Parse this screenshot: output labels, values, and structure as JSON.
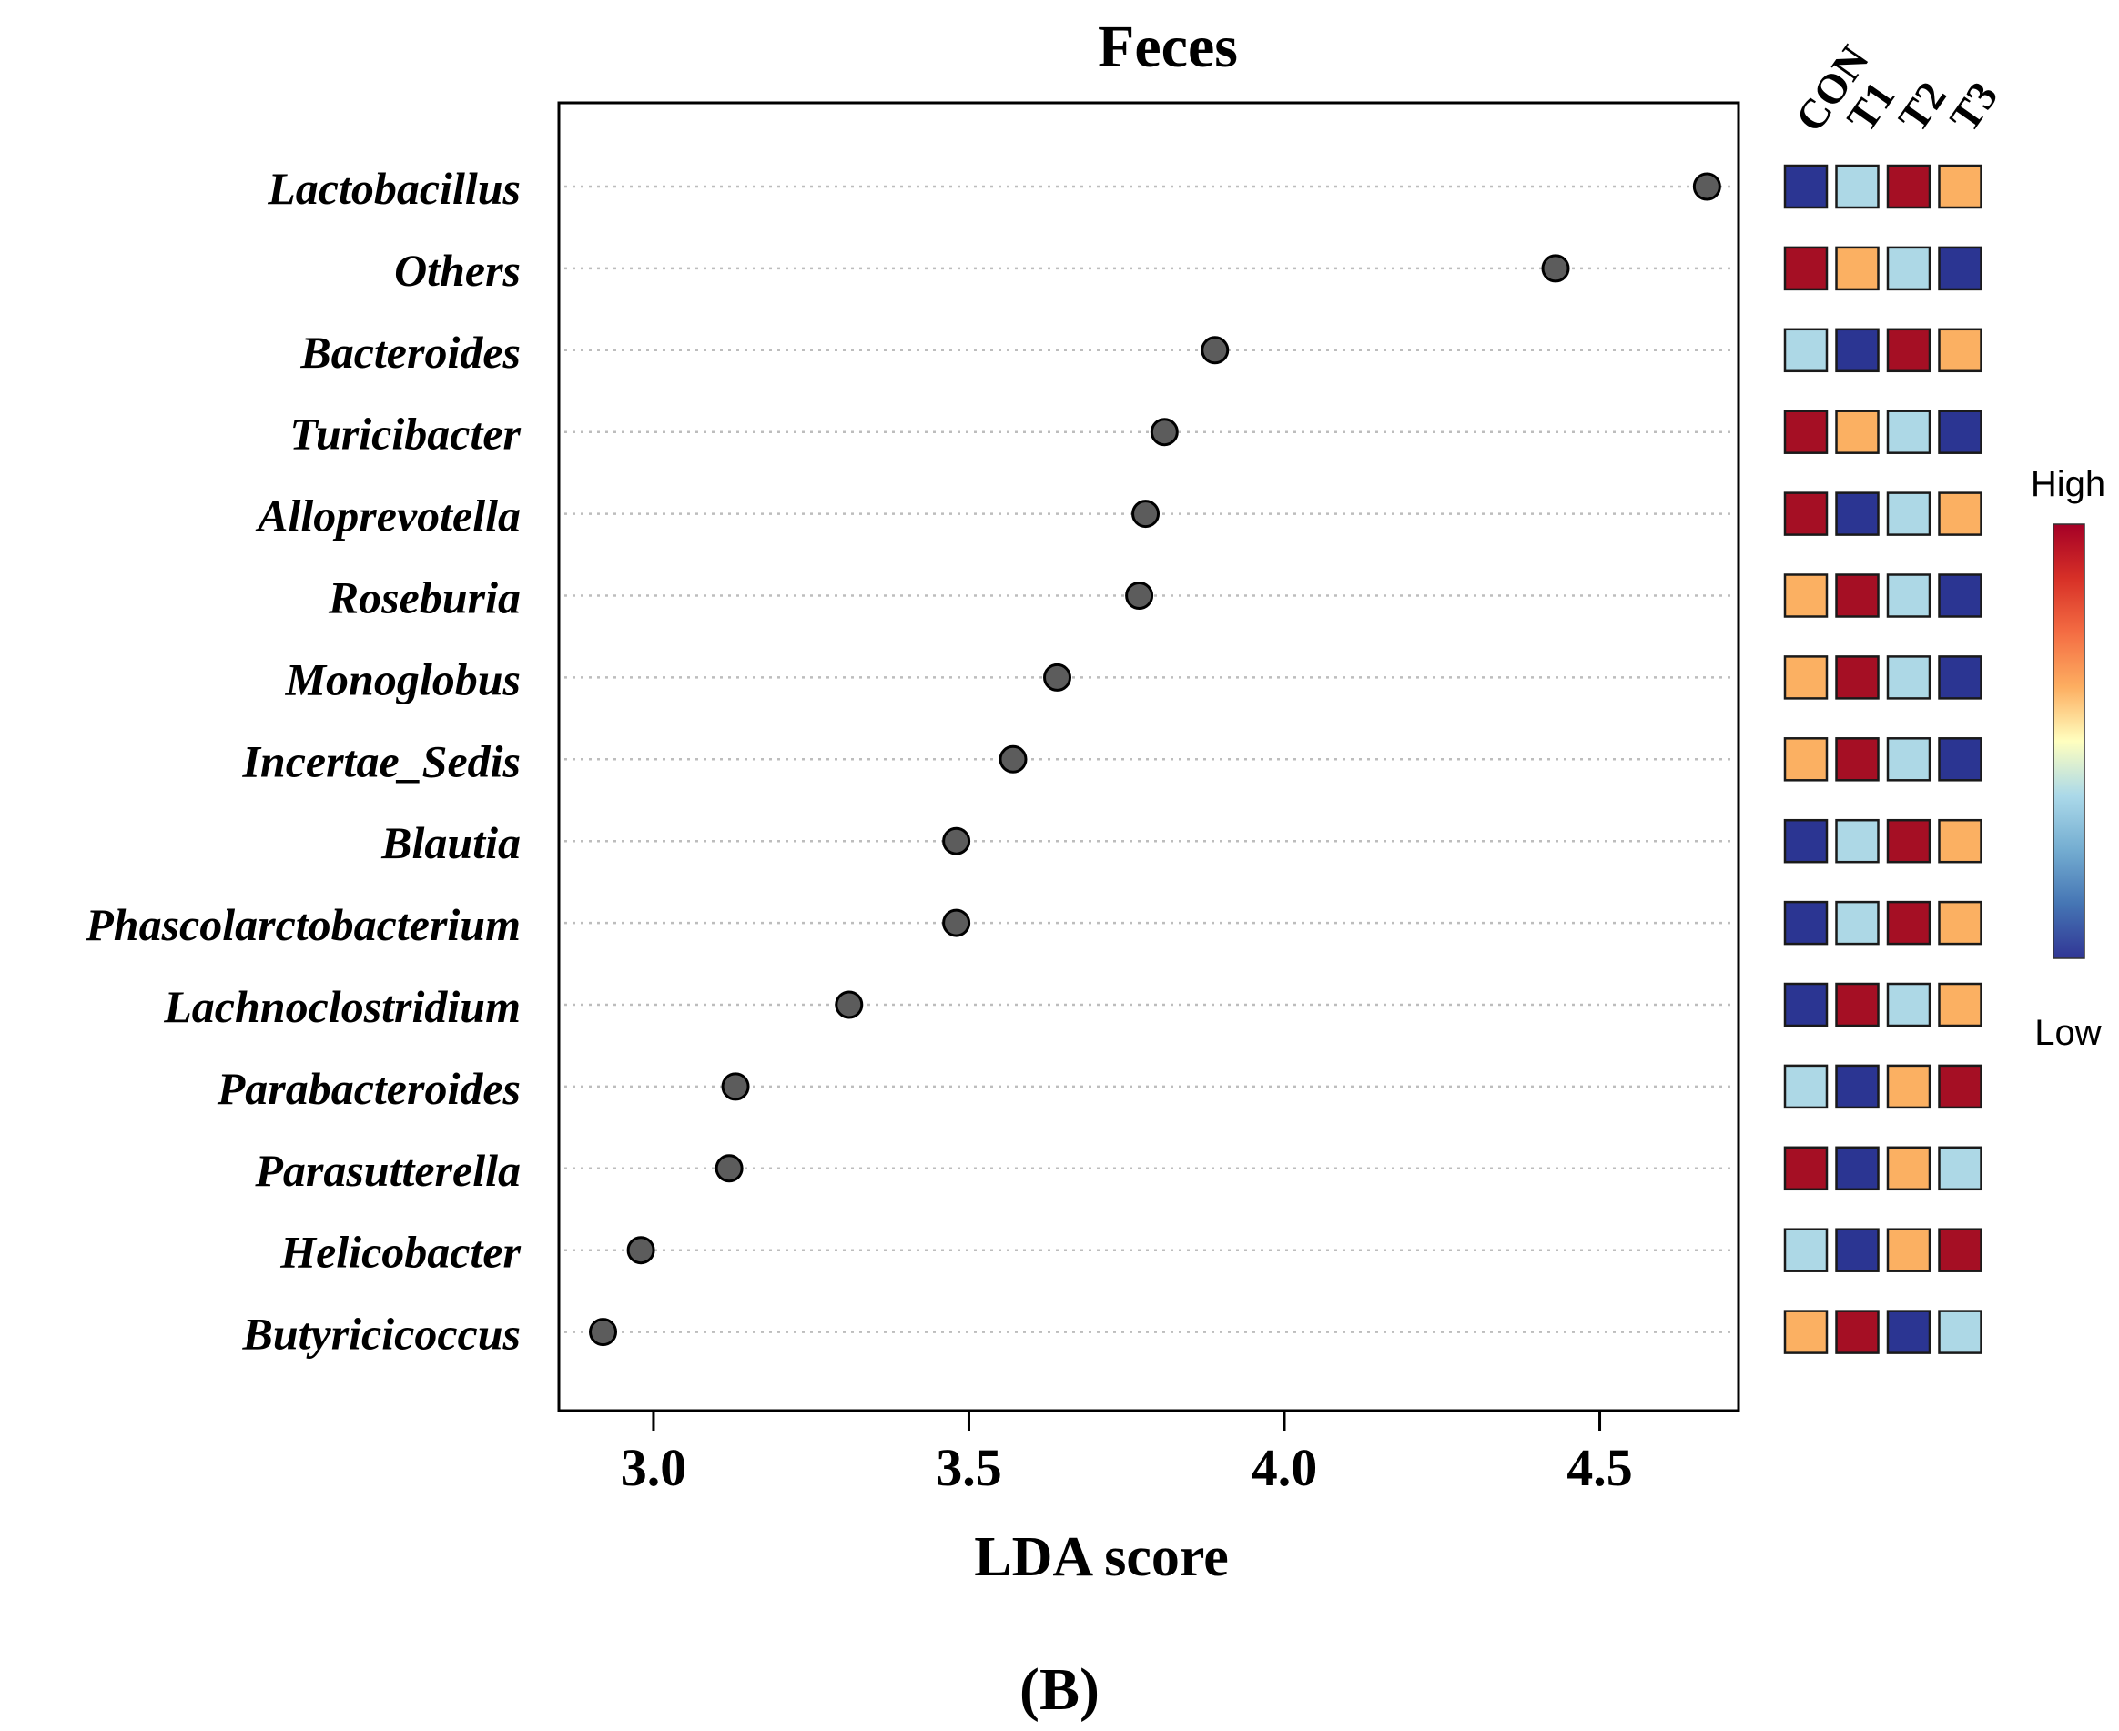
{
  "chart_data": {
    "type": "scatter",
    "title": "Feces",
    "xlabel": "LDA score",
    "ylabel": "",
    "panel_label": "(B)",
    "xlim": [
      2.85,
      4.72
    ],
    "x_ticks": [
      3.0,
      3.5,
      4.0,
      4.5
    ],
    "x_tick_labels": [
      "3.0",
      "3.5",
      "4.0",
      "4.5"
    ],
    "grid": "horizontal dotted",
    "categories": [
      "Lactobacillus",
      "Others",
      "Bacteroides",
      "Turicibacter",
      "Alloprevotella",
      "Roseburia",
      "Monoglobus",
      "Incertae_Sedis",
      "Blautia",
      "Phascolarctobacterium",
      "Lachnoclostridium",
      "Parabacteroides",
      "Parasutterella",
      "Helicobacter",
      "Butyricicoccus"
    ],
    "values": [
      4.67,
      4.43,
      3.89,
      3.81,
      3.78,
      3.77,
      3.64,
      3.57,
      3.48,
      3.48,
      3.31,
      3.13,
      3.12,
      2.98,
      2.92
    ],
    "heatmap": {
      "columns": [
        "CON",
        "T1",
        "T2",
        "T3"
      ],
      "levels": [
        [
          1,
          2,
          4,
          3
        ],
        [
          4,
          3,
          2,
          1
        ],
        [
          2,
          1,
          4,
          3
        ],
        [
          4,
          3,
          2,
          1
        ],
        [
          4,
          1,
          2,
          3
        ],
        [
          3,
          4,
          2,
          1
        ],
        [
          3,
          4,
          2,
          1
        ],
        [
          3,
          4,
          2,
          1
        ],
        [
          1,
          2,
          4,
          3
        ],
        [
          1,
          2,
          4,
          3
        ],
        [
          1,
          4,
          2,
          3
        ],
        [
          2,
          1,
          3,
          4
        ],
        [
          4,
          1,
          3,
          2
        ],
        [
          2,
          1,
          3,
          4
        ],
        [
          3,
          4,
          1,
          2
        ]
      ],
      "level_colors": {
        "1": "#2b3592",
        "2": "#add8e6",
        "3": "#fbb062",
        "4": "#a50f24"
      },
      "legend_high": "High",
      "legend_low": "Low",
      "gradient_colors": [
        "#a50026",
        "#d73027",
        "#f46d43",
        "#fdae61",
        "#ffffbf",
        "#abd9e9",
        "#74add1",
        "#4575b4",
        "#313695"
      ]
    }
  },
  "colors": {
    "point_fill": "#5c5c5c",
    "grid_line": "#bdbdbd",
    "frame": "#000000"
  }
}
